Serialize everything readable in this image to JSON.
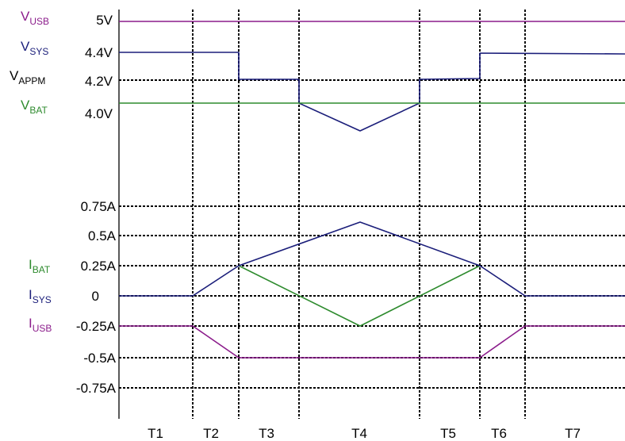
{
  "colors": {
    "usb": "#8b1c8b",
    "sys": "#1b1e7a",
    "bat": "#2e8b2e",
    "appm": "#000000"
  },
  "voltage_labels": {
    "usb": {
      "name": "V",
      "sub": "USB",
      "value": "5V"
    },
    "sys": {
      "name": "V",
      "sub": "SYS",
      "value": "4.4V"
    },
    "appm": {
      "name": "V",
      "sub": "APPM",
      "value": "4.2V"
    },
    "bat": {
      "name": "V",
      "sub": "BAT",
      "value": "4.0V"
    }
  },
  "current_labels": {
    "pos075": "0.75A",
    "pos05": "0.5A",
    "pos025": "0.25A",
    "zero": "0",
    "neg025": "-0.25A",
    "neg05": "-0.5A",
    "neg075": "-0.75A"
  },
  "current_signal_labels": {
    "bat": {
      "name": "I",
      "sub": "BAT"
    },
    "sys": {
      "name": "I",
      "sub": "SYS"
    },
    "usb": {
      "name": "I",
      "sub": "USB"
    }
  },
  "intervals": [
    "T1",
    "T2",
    "T3",
    "T4",
    "T5",
    "T6",
    "T7"
  ]
}
